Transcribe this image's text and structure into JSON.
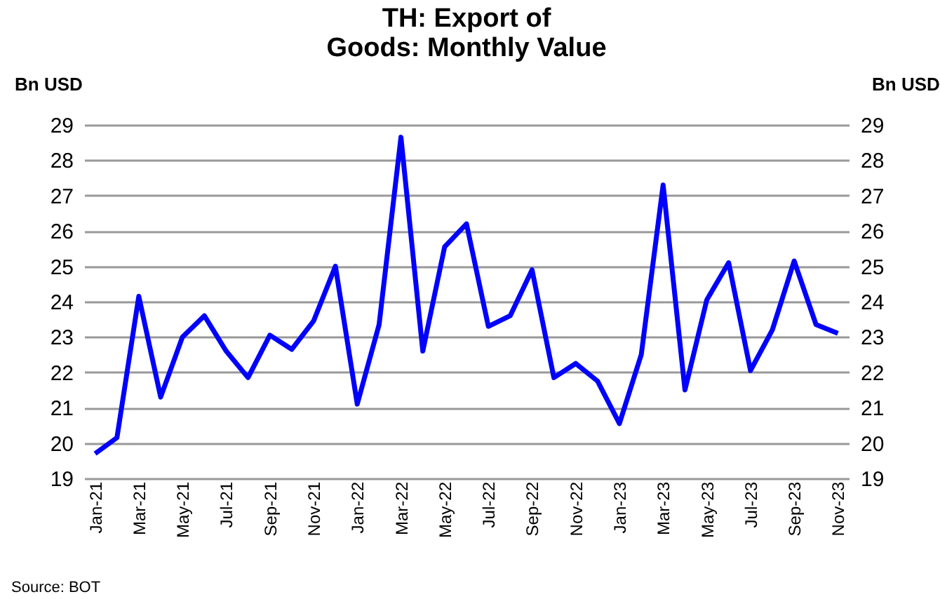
{
  "chart_data": {
    "type": "line",
    "title": "TH: Export of Goods: Monthly Value",
    "ylabel": "Bn USD",
    "y2label": "Bn USD",
    "categories": [
      "Jan-21",
      null,
      "Mar-21",
      null,
      "May-21",
      null,
      "Jul-21",
      null,
      "Sep-21",
      null,
      "Nov-21",
      null,
      "Jan-22",
      null,
      "Mar-22",
      null,
      "May-22",
      null,
      "Jul-22",
      null,
      "Sep-22",
      null,
      "Nov-22",
      null,
      "Jan-23",
      null,
      "Mar-23",
      null,
      "May-23",
      null,
      "Jul-23",
      null,
      "Sep-23",
      null,
      "Nov-23"
    ],
    "series": [
      {
        "color": "#0000ff",
        "values": [
          19.7,
          20.15,
          24.15,
          21.3,
          23.0,
          23.6,
          22.6,
          21.85,
          23.05,
          22.65,
          23.45,
          25.0,
          21.1,
          23.35,
          28.65,
          22.6,
          25.55,
          26.2,
          23.3,
          23.6,
          24.9,
          21.85,
          22.25,
          21.75,
          20.55,
          22.5,
          27.3,
          21.5,
          24.05,
          25.1,
          22.05,
          23.2,
          25.15,
          23.35,
          23.1
        ]
      }
    ],
    "ylim": [
      19,
      29
    ],
    "yticks": [
      19,
      20,
      21,
      22,
      23,
      24,
      25,
      26,
      27,
      28,
      29
    ],
    "y2lim": [
      19,
      29
    ],
    "y2ticks": [
      19,
      20,
      21,
      22,
      23,
      24,
      25,
      26,
      27,
      28,
      29
    ],
    "grid": "y",
    "legend": false,
    "marker": "none",
    "line_style": "solid",
    "annotations": [
      "Source: BOT"
    ]
  }
}
